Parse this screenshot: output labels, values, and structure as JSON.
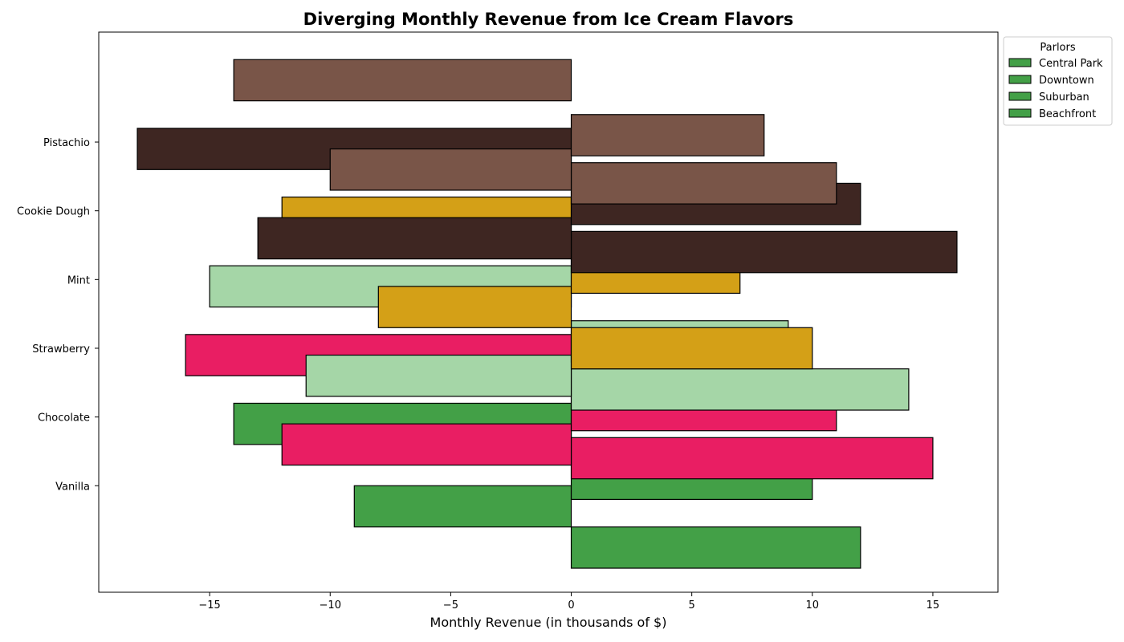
{
  "chart_data": {
    "type": "bar",
    "orientation": "horizontal",
    "title": "Diverging Monthly Revenue from Ice Cream Flavors",
    "xlabel": "Monthly Revenue (in thousands of $)",
    "ylabel": "",
    "xlim": [
      -19.6,
      17.7
    ],
    "xticks": [
      -15,
      -10,
      -5,
      0,
      5,
      10,
      15
    ],
    "xtick_labels": [
      "−15",
      "−10",
      "−5",
      "0",
      "5",
      "10",
      "15"
    ],
    "ylim": [
      -1.55,
      6.6
    ],
    "categories": [
      "Vanilla",
      "Chocolate",
      "Strawberry",
      "Mint",
      "Cookie Dough",
      "Pistachio"
    ],
    "grid": false,
    "legend": {
      "title": "Parlors",
      "placement": "outside upper right",
      "entries": [
        "Central Park",
        "Downtown",
        "Suburban",
        "Beachfront"
      ],
      "swatch_color": "#43a047"
    },
    "bars": [
      {
        "flavor": "Vanilla",
        "y_center": -0.9,
        "value": 12,
        "color": "#43a047"
      },
      {
        "flavor": "Vanilla",
        "y_center": -0.3,
        "value": -9,
        "color": "#43a047"
      },
      {
        "flavor": "Vanilla",
        "y_center": 0.1,
        "value": 10,
        "color": "#43a047"
      },
      {
        "flavor": "Vanilla",
        "y_center": 0.9,
        "value": -14,
        "color": "#43a047"
      },
      {
        "flavor": "Chocolate",
        "y_center": 0.4,
        "value": 15,
        "color": "#e91e63"
      },
      {
        "flavor": "Chocolate",
        "y_center": 0.6,
        "value": -12,
        "color": "#e91e63"
      },
      {
        "flavor": "Chocolate",
        "y_center": 1.1,
        "value": 11,
        "color": "#e91e63"
      },
      {
        "flavor": "Chocolate",
        "y_center": 1.9,
        "value": -16,
        "color": "#e91e63"
      },
      {
        "flavor": "Strawberry",
        "y_center": 1.4,
        "value": 14,
        "color": "#a5d6a7"
      },
      {
        "flavor": "Strawberry",
        "y_center": 1.6,
        "value": -11,
        "color": "#a5d6a7"
      },
      {
        "flavor": "Strawberry",
        "y_center": 2.1,
        "value": 9,
        "color": "#a5d6a7"
      },
      {
        "flavor": "Strawberry",
        "y_center": 2.9,
        "value": -15,
        "color": "#a5d6a7"
      },
      {
        "flavor": "Mint",
        "y_center": 2.0,
        "value": 10,
        "color": "#d4a017"
      },
      {
        "flavor": "Mint",
        "y_center": 2.6,
        "value": -8,
        "color": "#d4a017"
      },
      {
        "flavor": "Mint",
        "y_center": 3.1,
        "value": 7,
        "color": "#d4a017"
      },
      {
        "flavor": "Mint",
        "y_center": 3.9,
        "value": -12,
        "color": "#d4a017"
      },
      {
        "flavor": "Cookie Dough",
        "y_center": 3.4,
        "value": 16,
        "color": "#3e2622"
      },
      {
        "flavor": "Cookie Dough",
        "y_center": 3.6,
        "value": -13,
        "color": "#3e2622"
      },
      {
        "flavor": "Cookie Dough",
        "y_center": 4.1,
        "value": 12,
        "color": "#3e2622"
      },
      {
        "flavor": "Cookie Dough",
        "y_center": 4.9,
        "value": -18,
        "color": "#3e2622"
      },
      {
        "flavor": "Pistachio",
        "y_center": 4.4,
        "value": 11,
        "color": "#795548"
      },
      {
        "flavor": "Pistachio",
        "y_center": 4.6,
        "value": -10,
        "color": "#795548"
      },
      {
        "flavor": "Pistachio",
        "y_center": 5.1,
        "value": 8,
        "color": "#795548"
      },
      {
        "flavor": "Pistachio",
        "y_center": 5.9,
        "value": -14,
        "color": "#795548"
      }
    ],
    "bar_height": 0.6
  }
}
